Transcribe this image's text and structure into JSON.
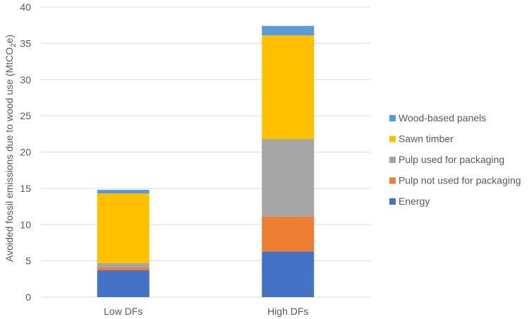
{
  "chart_data": {
    "type": "bar",
    "stacked": true,
    "categories": [
      "Low DFs",
      "High DFs"
    ],
    "series": [
      {
        "name": "Energy",
        "values": [
          3.7,
          6.3
        ],
        "color": "#4472C4"
      },
      {
        "name": "Pulp not used for packaging",
        "values": [
          0.4,
          4.8
        ],
        "color": "#ED7D31"
      },
      {
        "name": "Pulp used for packaging",
        "values": [
          0.6,
          10.7
        ],
        "color": "#A5A5A5"
      },
      {
        "name": "Sawn timber",
        "values": [
          9.6,
          14.3
        ],
        "color": "#FFC000"
      },
      {
        "name": "Wood-based panels",
        "values": [
          0.5,
          1.3
        ],
        "color": "#5B9BD5"
      }
    ],
    "ylabel_parts": {
      "pre": "Avoided fossil emissions due to wood use (MtCO",
      "sub": "2",
      "post": "e)"
    },
    "ylim": [
      0,
      40
    ],
    "yticks": [
      0,
      5,
      10,
      15,
      20,
      25,
      30,
      35,
      40
    ],
    "grid": true,
    "legend_position": "right"
  }
}
